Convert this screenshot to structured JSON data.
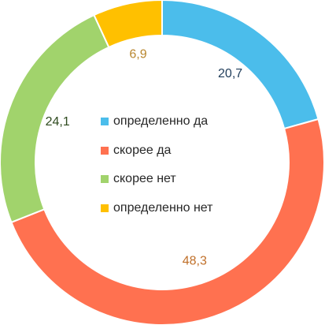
{
  "chart_data": {
    "type": "pie",
    "title": "",
    "categories": [
      "определенно да",
      "скорее да",
      "скорее нет",
      "определенно нет"
    ],
    "values": [
      20.7,
      48.3,
      24.1,
      6.9
    ],
    "value_labels": [
      "20,7",
      "48,3",
      "24,1",
      "6,9"
    ],
    "colors": [
      "#4BBDEB",
      "#FF7150",
      "#A1D36C",
      "#FFC000"
    ],
    "label_colors": [
      "#1F3C5A",
      "#C0702A",
      "#2E4A1E",
      "#B8862E"
    ],
    "donut": true,
    "start_angle_deg": 0,
    "direction": "clockwise",
    "legend_position": "center"
  }
}
